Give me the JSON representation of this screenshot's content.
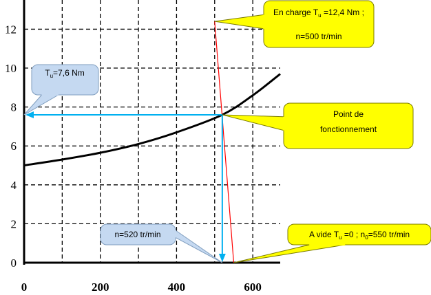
{
  "chart_data": {
    "type": "line",
    "title": "",
    "xlabel": "",
    "ylabel": "",
    "xlim": [
      0,
      672
    ],
    "ylim": [
      0,
      13.5
    ],
    "x_ticks": [
      0,
      200,
      400,
      600
    ],
    "y_ticks": [
      0,
      2,
      4,
      6,
      8,
      10,
      12
    ],
    "x_tick_labels": [
      "0",
      "200",
      "400",
      "600"
    ],
    "y_tick_labels": [
      "0",
      "2",
      "4",
      "6",
      "8",
      "10",
      "12"
    ],
    "grid": true,
    "grid_style": "dashed",
    "series": [
      {
        "key": "load_torque",
        "color": "#000000",
        "x": [
          0,
          100,
          200,
          300,
          400,
          520,
          600,
          672
        ],
        "y": [
          5.0,
          5.3,
          5.65,
          6.1,
          6.7,
          7.6,
          8.6,
          9.7
        ]
      },
      {
        "key": "motor_torque",
        "color": "#ff0000",
        "x": [
          500,
          550
        ],
        "y": [
          12.4,
          0
        ]
      }
    ],
    "operating_point": {
      "n": 520,
      "T": 7.6
    },
    "annotations": {
      "load": {
        "prefix": "En charge T",
        "sub": "u",
        "suffix": " =12,4 Nm ;",
        "line2": "n=500 tr/min",
        "point": [
          500,
          12.4
        ]
      },
      "torque": {
        "prefix": "T",
        "sub": "u",
        "suffix": "=7,6 Nm",
        "point": [
          0,
          7.6
        ]
      },
      "operating": {
        "line1": "Point de",
        "line2": "fonctionnement",
        "point": [
          520,
          7.6
        ]
      },
      "speed": {
        "text": "n=520 tr/min",
        "point": [
          520,
          0
        ]
      },
      "noload": {
        "part1": "A vide T",
        "sub1": "u",
        "part2": " =0 ; n",
        "sub2": "0",
        "part3": "=550 tr/min",
        "point": [
          550,
          0
        ]
      }
    },
    "colors": {
      "callout_yellow": "#ffff00",
      "callout_blue": "#c5d9f1",
      "projection": "#00b0f0"
    }
  }
}
